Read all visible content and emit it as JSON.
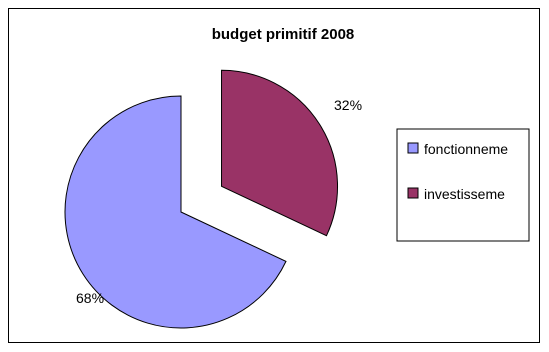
{
  "chart_data": {
    "type": "pie",
    "title": "budget primitif 2008",
    "slices": [
      {
        "label": "fonctionneme",
        "value": 68,
        "percent_label": "68%",
        "color": "#9999ff"
      },
      {
        "label": "investisseme",
        "value": 32,
        "percent_label": "32%",
        "color": "#993366"
      }
    ],
    "exploded": "investisseme",
    "legend_position": "right"
  }
}
